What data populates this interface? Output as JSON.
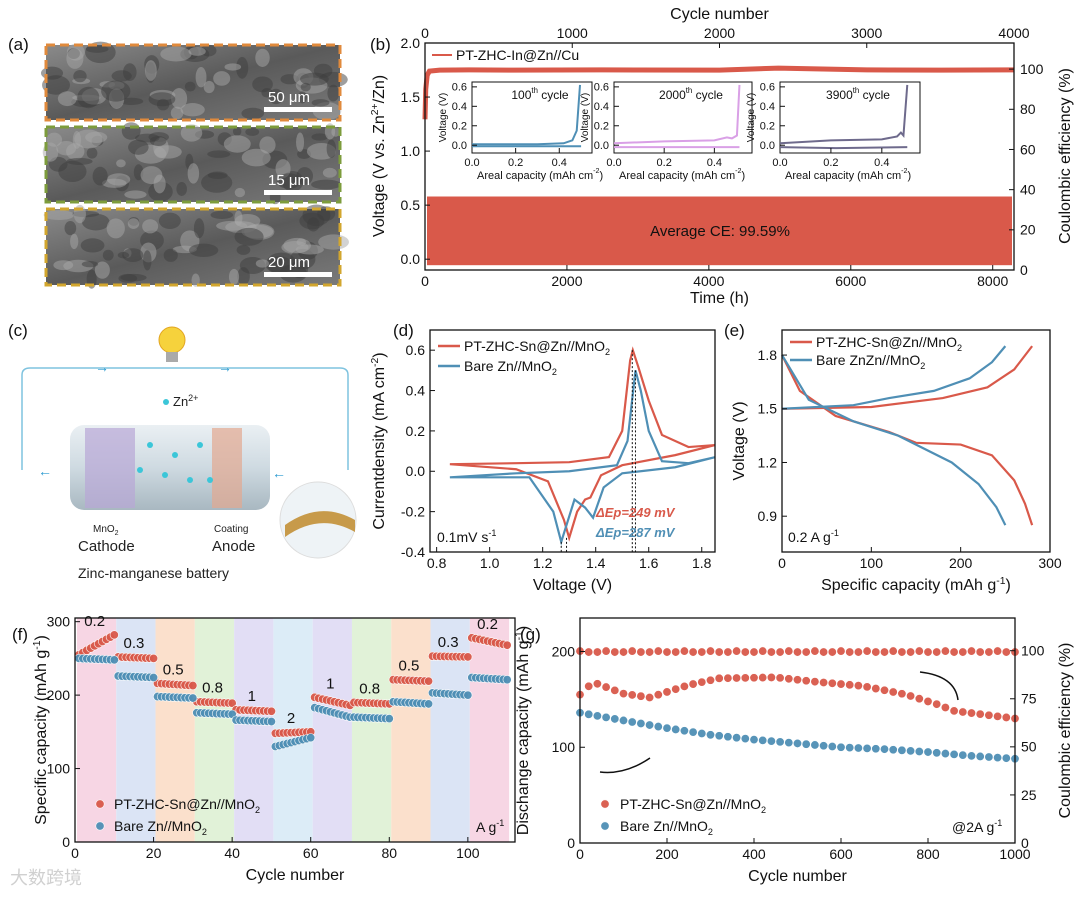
{
  "panel_labels": {
    "a": "(a)",
    "b": "(b)",
    "c": "(c)",
    "d": "(d)",
    "e": "(e)",
    "f": "(f)",
    "g": "(g)"
  },
  "panel_a": {
    "scale_bars": [
      "50 μm",
      "15 μm",
      "20 μm"
    ],
    "border_colors": [
      "#e08a3c",
      "#7d9c3c",
      "#d2a62e"
    ]
  },
  "panel_c": {
    "ion_label": "Zn",
    "ion_sup": "2+",
    "cathode_material": "MnO",
    "cathode_sub": "2",
    "cathode_label": "Cathode",
    "anode_material": "Coating",
    "anode_label": "Anode",
    "caption": "Zinc-manganese battery"
  },
  "watermark": "大数跨境",
  "colors": {
    "red": "#d9594a",
    "blue": "#4f8fb5",
    "pink": "#d9a0e6",
    "purple": "#6e6a8c"
  },
  "chart_data": [
    {
      "id": "b",
      "type": "line",
      "xlabel": "Time (h)",
      "top_xlabel": "Cycle number",
      "ylabel": "Voltage (V vs. Zn",
      "ylabel_sup": "2+",
      "ylabel_end": "/Zn)",
      "y2label": "Coulombic efficiency (%)",
      "xlim": [
        0,
        8300
      ],
      "ylim": [
        -0.1,
        2.0
      ],
      "top_xlim": [
        0,
        4000
      ],
      "y2lim": [
        0,
        113
      ],
      "xticks": [
        0,
        2000,
        4000,
        6000,
        8000
      ],
      "yticks": [
        "0.0",
        "0.5",
        "1.0",
        "1.5",
        "2.0"
      ],
      "top_xticks": [
        0,
        1000,
        2000,
        3000,
        4000
      ],
      "y2ticks": [
        0,
        20,
        40,
        60,
        80,
        100
      ],
      "legend": "PT-ZHC-In@Zn//Cu",
      "annotation": "Average CE: 99.59%",
      "voltage_band": [
        0,
        0.58
      ],
      "ce_series": {
        "cycle": [
          0,
          5,
          15,
          30,
          100,
          300,
          600,
          1200,
          2000,
          2400,
          3000,
          3500,
          4000
        ],
        "ce": [
          75,
          90,
          97,
          99,
          99.5,
          99.6,
          99.5,
          99.6,
          99.5,
          100.5,
          99.6,
          99.5,
          99.6
        ]
      },
      "insets": [
        {
          "title": "100",
          "title_sup": "th",
          "title_end": " cycle",
          "color": "#4f8fb5",
          "xlabel": "Areal capacity (mAh cm",
          "xlabel_sup": "-2",
          "xlabel_end": ")",
          "ylabel": "Voltage (V)",
          "xlim": [
            0,
            0.55
          ],
          "ylim": [
            -0.08,
            0.65
          ],
          "xticks": [
            "0.0",
            "0.2",
            "0.4"
          ],
          "yticks": [
            "0.0",
            "0.2",
            "0.4",
            "0.6"
          ],
          "charge": [
            [
              0,
              0.01
            ],
            [
              0.3,
              0.01
            ],
            [
              0.42,
              0.02
            ],
            [
              0.46,
              0.05
            ],
            [
              0.48,
              0.15
            ],
            [
              0.495,
              0.62
            ]
          ],
          "discharge": [
            [
              0,
              -0.01
            ],
            [
              0.5,
              -0.01
            ]
          ]
        },
        {
          "title": "2000",
          "title_sup": "th",
          "title_end": " cycle",
          "color": "#d9a0e6",
          "xlabel": "Areal capacity (mAh cm",
          "xlabel_sup": "-2",
          "xlabel_end": ")",
          "ylabel": "Voltage (V)",
          "xlim": [
            0,
            0.55
          ],
          "ylim": [
            -0.08,
            0.65
          ],
          "xticks": [
            "0.0",
            "0.2",
            "0.4"
          ],
          "yticks": [
            "0.0",
            "0.2",
            "0.4",
            "0.6"
          ],
          "charge": [
            [
              0,
              0.02
            ],
            [
              0.2,
              0.04
            ],
            [
              0.4,
              0.05
            ],
            [
              0.45,
              0.08
            ],
            [
              0.47,
              0.07
            ],
            [
              0.49,
              0.1
            ],
            [
              0.5,
              0.62
            ]
          ],
          "discharge": [
            [
              0,
              -0.02
            ],
            [
              0.5,
              -0.02
            ]
          ]
        },
        {
          "title": "3900",
          "title_sup": "th",
          "title_end": " cycle",
          "color": "#6e6a8c",
          "xlabel": "Areal capacity (mAh cm",
          "xlabel_sup": "-2",
          "xlabel_end": ")",
          "ylabel": "Voltage (V)",
          "xlim": [
            0,
            0.55
          ],
          "ylim": [
            -0.08,
            0.65
          ],
          "xticks": [
            "0.0",
            "0.2",
            "0.4"
          ],
          "yticks": [
            "0.0",
            "0.2",
            "0.4",
            "0.6"
          ],
          "charge": [
            [
              0,
              0.02
            ],
            [
              0.2,
              0.05
            ],
            [
              0.4,
              0.06
            ],
            [
              0.46,
              0.09
            ],
            [
              0.475,
              0.13
            ],
            [
              0.485,
              0.1
            ],
            [
              0.5,
              0.62
            ]
          ],
          "discharge": [
            [
              0,
              -0.02
            ],
            [
              0.22,
              -0.03
            ],
            [
              0.5,
              -0.02
            ]
          ]
        }
      ]
    },
    {
      "id": "d",
      "type": "line",
      "xlabel": "Voltage (V)",
      "ylabel": "Currentdensity (mA cm",
      "ylabel_sup": "-2",
      "ylabel_end": ")",
      "xlim": [
        0.775,
        1.85
      ],
      "ylim": [
        -0.4,
        0.7
      ],
      "xticks": [
        "0.8",
        "1.0",
        "1.2",
        "1.4",
        "1.6",
        "1.8"
      ],
      "yticks": [
        "-0.4",
        "-0.3",
        "-0.2",
        "-0.1",
        "0.0",
        "0.1",
        "0.2",
        "0.3",
        "0.4",
        "0.5",
        "0.6"
      ],
      "annotation": "0.1mV s",
      "annotation_sup": "-1",
      "series": [
        {
          "name": "PT-ZHC-Sn@Zn//MnO",
          "name_sub": "2",
          "color": "#d9594a",
          "delta_label": "ΔEp",
          "delta_value": "=249 mV",
          "points": [
            [
              1.85,
              0.13
            ],
            [
              1.7,
              0.08
            ],
            [
              1.5,
              0.03
            ],
            [
              1.42,
              -0.02
            ],
            [
              1.38,
              -0.13
            ],
            [
              1.36,
              -0.14
            ],
            [
              1.33,
              -0.2
            ],
            [
              1.3,
              -0.33
            ],
            [
              1.28,
              -0.24
            ],
            [
              1.22,
              -0.05
            ],
            [
              1.1,
              0.01
            ],
            [
              0.85,
              0.035
            ],
            [
              1.1,
              0.04
            ],
            [
              1.3,
              0.045
            ],
            [
              1.45,
              0.07
            ],
            [
              1.5,
              0.2
            ],
            [
              1.53,
              0.55
            ],
            [
              1.54,
              0.6
            ],
            [
              1.56,
              0.52
            ],
            [
              1.6,
              0.35
            ],
            [
              1.65,
              0.18
            ],
            [
              1.75,
              0.12
            ],
            [
              1.85,
              0.13
            ]
          ]
        },
        {
          "name": "Bare Zn//MnO",
          "name_sub": "2",
          "color": "#4f8fb5",
          "delta_label": "ΔEp",
          "delta_value": "=287 mV",
          "points": [
            [
              1.85,
              0.07
            ],
            [
              1.7,
              0.02
            ],
            [
              1.5,
              -0.01
            ],
            [
              1.43,
              -0.08
            ],
            [
              1.39,
              -0.23
            ],
            [
              1.36,
              -0.18
            ],
            [
              1.32,
              -0.14
            ],
            [
              1.27,
              -0.35
            ],
            [
              1.24,
              -0.2
            ],
            [
              1.15,
              -0.03
            ],
            [
              0.85,
              -0.03
            ],
            [
              1.1,
              -0.01
            ],
            [
              1.3,
              0.0
            ],
            [
              1.48,
              0.03
            ],
            [
              1.52,
              0.15
            ],
            [
              1.55,
              0.5
            ],
            [
              1.57,
              0.4
            ],
            [
              1.6,
              0.2
            ],
            [
              1.65,
              0.05
            ],
            [
              1.75,
              0.04
            ],
            [
              1.85,
              0.07
            ]
          ]
        }
      ]
    },
    {
      "id": "e",
      "type": "line",
      "xlabel": "Specific capacity (mAh g",
      "xlabel_sup": "-1",
      "xlabel_end": ")",
      "ylabel": "Voltage (V)",
      "xlim": [
        0,
        300
      ],
      "ylim": [
        0.7,
        1.94
      ],
      "xticks": [
        "0",
        "100",
        "200",
        "300"
      ],
      "yticks": [
        "0.9",
        "1.2",
        "1.5",
        "1.8"
      ],
      "annotation": "0.2 A g",
      "annotation_sup": "-1",
      "series": [
        {
          "name": "PT-ZHC-Sn@Zn//MnO",
          "name_sub": "2",
          "color": "#d9594a",
          "charge": [
            [
              0,
              1.5
            ],
            [
              100,
              1.51
            ],
            [
              180,
              1.56
            ],
            [
              230,
              1.62
            ],
            [
              260,
              1.72
            ],
            [
              280,
              1.85
            ]
          ],
          "discharge": [
            [
              0,
              1.8
            ],
            [
              20,
              1.6
            ],
            [
              60,
              1.46
            ],
            [
              120,
              1.37
            ],
            [
              150,
              1.31
            ],
            [
              200,
              1.3
            ],
            [
              235,
              1.24
            ],
            [
              260,
              1.1
            ],
            [
              272,
              0.97
            ],
            [
              280,
              0.85
            ]
          ]
        },
        {
          "name": "Bare ZnZn//MnO",
          "name_sub": "2",
          "color": "#4f8fb5",
          "charge": [
            [
              0,
              1.5
            ],
            [
              80,
              1.52
            ],
            [
              120,
              1.56
            ],
            [
              170,
              1.6
            ],
            [
              210,
              1.67
            ],
            [
              235,
              1.76
            ],
            [
              250,
              1.85
            ]
          ],
          "discharge": [
            [
              0,
              1.8
            ],
            [
              30,
              1.55
            ],
            [
              80,
              1.43
            ],
            [
              130,
              1.35
            ],
            [
              150,
              1.3
            ],
            [
              190,
              1.2
            ],
            [
              220,
              1.08
            ],
            [
              240,
              0.95
            ],
            [
              250,
              0.85
            ]
          ]
        }
      ]
    },
    {
      "id": "f",
      "type": "scatter",
      "xlabel": "Cycle number",
      "ylabel": "Specific capacity (mAh g",
      "ylabel_sup": "-1",
      "ylabel_end": ")",
      "xlim": [
        0,
        112
      ],
      "ylim": [
        0,
        305
      ],
      "xticks": [
        "0",
        "20",
        "40",
        "60",
        "80",
        "100"
      ],
      "yticks": [
        "0",
        "100",
        "200",
        "300"
      ],
      "unit_label": "A g",
      "unit_sup": "-1",
      "rates": [
        "0.2",
        "0.3",
        "0.5",
        "0.8",
        "1",
        "2",
        "1",
        "0.8",
        "0.5",
        "0.3",
        "0.2"
      ],
      "band_colors": [
        "#f7d6e4",
        "#dbe4f5",
        "#fbe0cc",
        "#e1f2d8",
        "#e2def5",
        "#dcecf7",
        "#e2def5",
        "#e1f2d8",
        "#fbe0cc",
        "#dbe4f5",
        "#f7d6e4"
      ],
      "series": [
        {
          "name": "PT-ZHC-Sn@Zn//MnO",
          "name_sub": "2",
          "color": "#d9594a",
          "segments": [
            [
              255,
              282
            ],
            [
              252,
              250
            ],
            [
              216,
              213
            ],
            [
              191,
              189
            ],
            [
              180,
              178
            ],
            [
              148,
              150
            ],
            [
              197,
              186
            ],
            [
              190,
              188
            ],
            [
              221,
              219
            ],
            [
              253,
              252
            ],
            [
              278,
              268
            ]
          ]
        },
        {
          "name": "Bare Zn//MnO",
          "name_sub": "2",
          "color": "#4f8fb5",
          "segments": [
            [
              250,
              248
            ],
            [
              226,
              224
            ],
            [
              198,
              196
            ],
            [
              176,
              174
            ],
            [
              166,
              164
            ],
            [
              130,
              142
            ],
            [
              183,
              170
            ],
            [
              170,
              168
            ],
            [
              191,
              188
            ],
            [
              203,
              200
            ],
            [
              224,
              221
            ]
          ]
        }
      ]
    },
    {
      "id": "g",
      "type": "scatter",
      "xlabel": "Cycle number",
      "ylabel": "Dischange capacity (mAh g",
      "ylabel_sup": "-1",
      "ylabel_end": ")",
      "y2label": "Coulombic efficiency (%)",
      "xlim": [
        0,
        1000
      ],
      "ylim": [
        0,
        235
      ],
      "y2lim": [
        0,
        117
      ],
      "xticks": [
        "0",
        "200",
        "400",
        "600",
        "800",
        "1000"
      ],
      "yticks": [
        "0",
        "100",
        "200"
      ],
      "y2ticks": [
        "0",
        "25",
        "50",
        "75",
        "100"
      ],
      "annotation": "@2A g",
      "annotation_sup": "-1",
      "ce": 99.5,
      "series": [
        {
          "name": "PT-ZHC-Sn@Zn//MnO",
          "name_sub": "2",
          "color": "#d9594a",
          "points": [
            [
              0,
              155
            ],
            [
              30,
              168
            ],
            [
              100,
              156
            ],
            [
              160,
              152
            ],
            [
              250,
              165
            ],
            [
              320,
              172
            ],
            [
              450,
              173
            ],
            [
              550,
              168
            ],
            [
              650,
              164
            ],
            [
              750,
              155
            ],
            [
              820,
              145
            ],
            [
              860,
              138
            ],
            [
              1000,
              130
            ]
          ]
        },
        {
          "name": "Bare Zn//MnO",
          "name_sub": "2",
          "color": "#4f8fb5",
          "points": [
            [
              0,
              136
            ],
            [
              100,
              128
            ],
            [
              200,
              120
            ],
            [
              300,
              113
            ],
            [
              400,
              108
            ],
            [
              500,
              104
            ],
            [
              600,
              100
            ],
            [
              700,
              98
            ],
            [
              800,
              95
            ],
            [
              900,
              91
            ],
            [
              1000,
              88
            ]
          ]
        }
      ]
    }
  ]
}
